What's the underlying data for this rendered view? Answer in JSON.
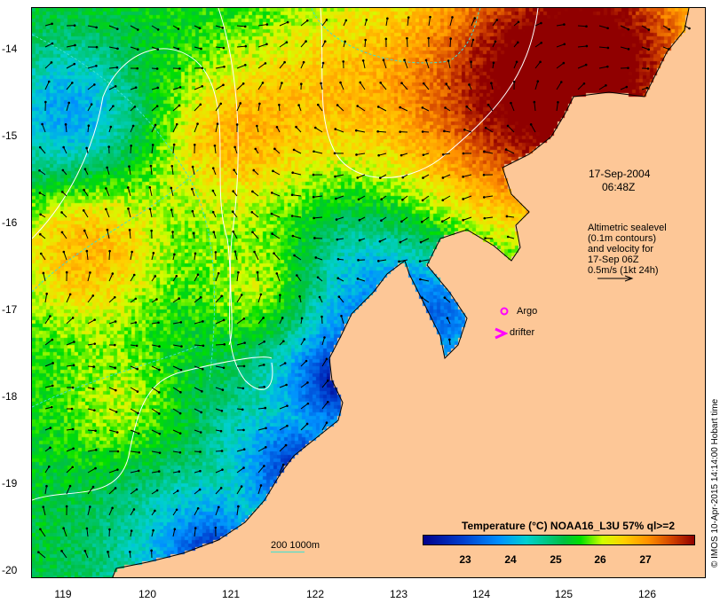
{
  "datetime": {
    "date": "17-Sep-2004",
    "time": "06:48Z"
  },
  "altimetry_note": [
    "Altimetric sealevel",
    "(0.1m contours)",
    "and velocity for",
    "17-Sep 06Z",
    "0.5m/s (1kt 24h)"
  ],
  "markers": {
    "argo": "Argo",
    "drifter": "drifter",
    "argo_color": "#ff00ff"
  },
  "depth_scale": "200  1000m",
  "legend": {
    "title": "Temperature (°C) NOAA16_L3U 57% ql>=2",
    "ticks": [
      "23",
      "24",
      "25",
      "26",
      "27"
    ],
    "min": 22.4,
    "max": 27.6
  },
  "axes": {
    "lon_ticks": [
      "119",
      "120",
      "121",
      "122",
      "123",
      "124",
      "125",
      "126"
    ],
    "lat_ticks": [
      "-14",
      "-15",
      "-16",
      "-17",
      "-18",
      "-19",
      "-20"
    ]
  },
  "credit": "© IMOS 10-Apr-2015 14:14:00 Hobart time",
  "colors": {
    "land": "#fdc797",
    "contour": "#ffffff",
    "isobath": "#40e0d0"
  }
}
